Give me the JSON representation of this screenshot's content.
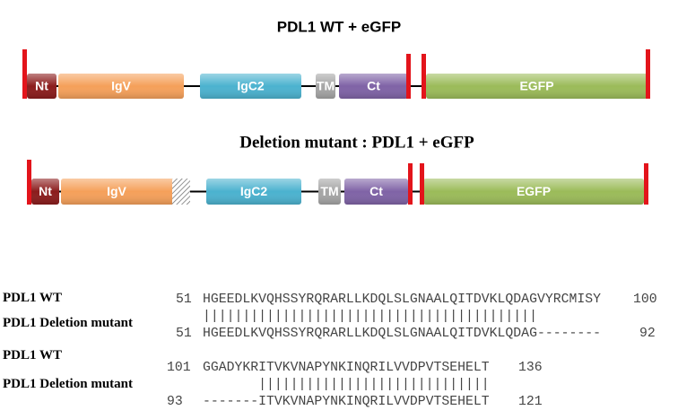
{
  "constructs": [
    {
      "title": "PDL1 WT + eGFP",
      "domains": [
        "Nt",
        "IgV",
        "IgC2",
        "TM",
        "Ct",
        "EGFP"
      ]
    },
    {
      "title": "Deletion mutant : PDL1 + eGFP",
      "domains": [
        "Nt",
        "IgV",
        "IgC2",
        "TM",
        "Ct",
        "EGFP"
      ]
    }
  ],
  "alignment": [
    {
      "rows": [
        {
          "label": "PDL1 WT",
          "start": 51,
          "sequence": "HGEEDLKVQHSSYRQRARLLKDQLSLGNAALQITDVKLQDAGVYRCMISY",
          "end": 100
        },
        {
          "label": "PDL1 Deletion mutant",
          "start": 51,
          "sequence": "HGEEDLKVQHSSYRQRARLLKDQLSLGNAALQITDVKLQDAG--------",
          "end": 92
        }
      ],
      "matches": "||||||||||||||||||||||||||||||||||||||||||"
    },
    {
      "rows": [
        {
          "label": "PDL1 WT",
          "start": 101,
          "sequence": "GGADYKRITVKVNAPYNKINQRILVVDPVTSEHELT",
          "end": 136
        },
        {
          "label": "PDL1 Deletion mutant",
          "start": 93,
          "sequence": "-------ITVKVNAPYNKINQRILVVDPVTSEHELT",
          "end": 121
        }
      ],
      "matches": "|||||||||||||||||||||||||||||"
    }
  ]
}
